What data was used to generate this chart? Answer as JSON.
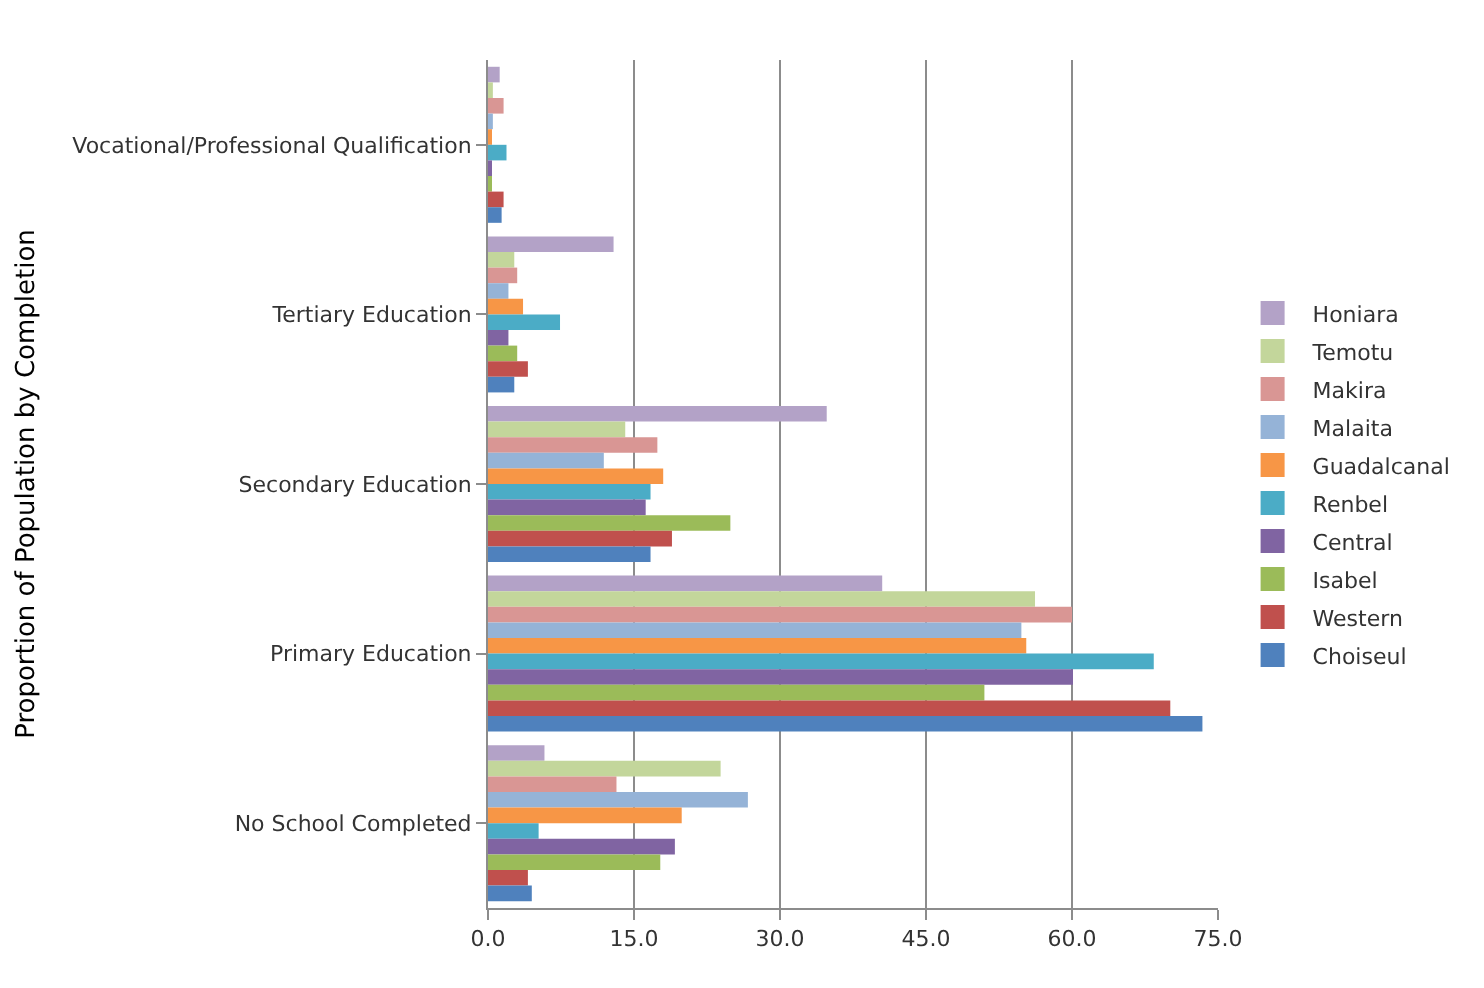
{
  "chart_data": {
    "type": "bar",
    "orientation": "horizontal",
    "ylabel": "Proportion of Population by Completion",
    "categories": [
      "Vocational/Professional Qualification",
      "Tertiary Education",
      "Secondary Education",
      "Primary Education",
      "No School Completed"
    ],
    "series": [
      {
        "name": "Honiara",
        "color": "#b3a2c7",
        "values": [
          1.2,
          12.9,
          34.8,
          40.5,
          5.8
        ]
      },
      {
        "name": "Temotu",
        "color": "#c3d69b",
        "values": [
          0.5,
          2.7,
          14.1,
          56.2,
          23.9
        ]
      },
      {
        "name": "Makira",
        "color": "#d99694",
        "values": [
          1.6,
          3.0,
          17.4,
          60.0,
          13.2
        ]
      },
      {
        "name": "Malaita",
        "color": "#95b3d7",
        "values": [
          0.5,
          2.1,
          11.9,
          54.8,
          26.7
        ]
      },
      {
        "name": "Guadalcanal",
        "color": "#f79646",
        "values": [
          0.3,
          3.6,
          18.0,
          55.3,
          19.9
        ]
      },
      {
        "name": "Renbel",
        "color": "#4bacc6",
        "values": [
          1.9,
          7.4,
          16.7,
          68.4,
          5.2
        ]
      },
      {
        "name": "Central",
        "color": "#8064a2",
        "values": [
          0.3,
          2.1,
          16.2,
          60.1,
          19.2
        ]
      },
      {
        "name": "Isabel",
        "color": "#9bbb59",
        "values": [
          0.3,
          3.0,
          24.9,
          51.0,
          17.7
        ]
      },
      {
        "name": "Western",
        "color": "#c0504d",
        "values": [
          1.6,
          4.1,
          18.9,
          70.1,
          4.1
        ]
      },
      {
        "name": "Choiseul",
        "color": "#4f81bd",
        "values": [
          1.4,
          2.7,
          16.7,
          73.4,
          4.5
        ]
      }
    ],
    "xlim": [
      0,
      75
    ],
    "xticks": [
      {
        "value": 0,
        "label": "0.0"
      },
      {
        "value": 15,
        "label": "15.0"
      },
      {
        "value": 30,
        "label": "30.0"
      },
      {
        "value": 45,
        "label": "45.0"
      },
      {
        "value": 60,
        "label": "60.0"
      },
      {
        "value": 75,
        "label": "75.0"
      }
    ],
    "grid": "x",
    "legend": "right"
  }
}
